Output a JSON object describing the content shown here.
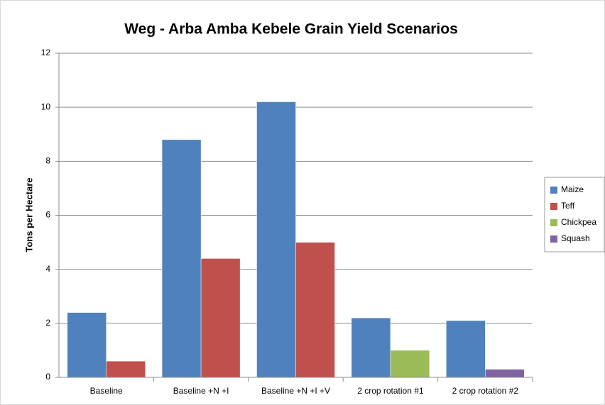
{
  "chart_data": {
    "type": "bar",
    "title": "Weg - Arba Amba Kebele Grain Yield Scenarios",
    "y_label": "Tons per Hectare",
    "categories": [
      "Baseline",
      "Baseline +N +I",
      "Baseline +N +I +V",
      "2 crop rotation #1",
      "2 crop rotation #2"
    ],
    "series": [
      {
        "name": "Maize",
        "color": "#4f81bd",
        "values": [
          2.4,
          8.8,
          10.2,
          2.2,
          2.1
        ]
      },
      {
        "name": "Teff",
        "color": "#c0504d",
        "values": [
          0.6,
          4.4,
          5.0,
          null,
          null
        ]
      },
      {
        "name": "Chickpea",
        "color": "#9bbb59",
        "values": [
          null,
          null,
          null,
          1.0,
          null
        ]
      },
      {
        "name": "Squash",
        "color": "#8064a2",
        "values": [
          null,
          null,
          null,
          null,
          0.3
        ]
      }
    ],
    "ylim": [
      0,
      12
    ],
    "yticks": [
      0,
      2,
      4,
      6,
      8,
      10,
      12
    ],
    "grid": true,
    "legend": "right"
  }
}
